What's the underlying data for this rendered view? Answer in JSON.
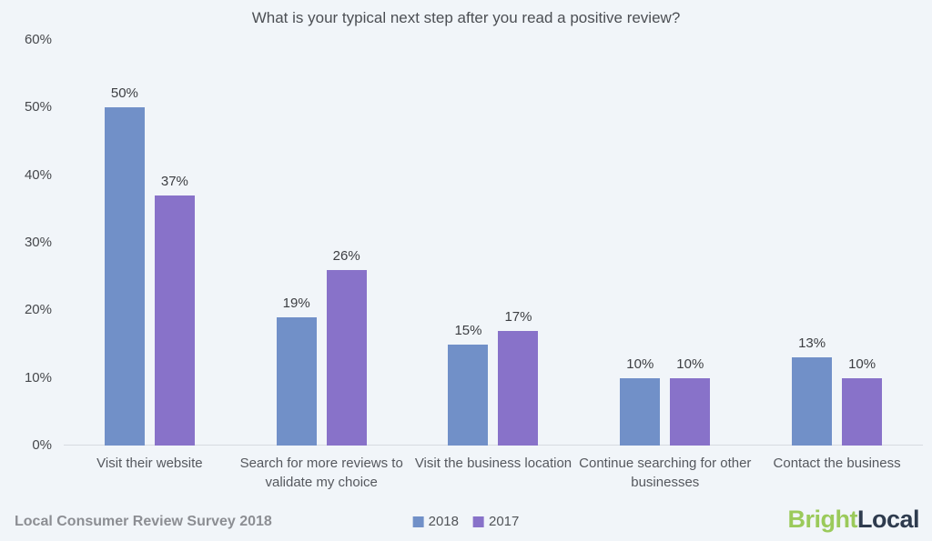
{
  "chart_data": {
    "type": "bar",
    "title": "What is your typical next step after you read a positive review?",
    "categories": [
      "Visit their website",
      "Search for more reviews to validate my choice",
      "Visit the business location",
      "Continue searching for other businesses",
      "Contact the business"
    ],
    "series": [
      {
        "name": "2018",
        "color": "#7190C8",
        "values": [
          50,
          19,
          15,
          10,
          13
        ]
      },
      {
        "name": "2017",
        "color": "#8872C9",
        "values": [
          37,
          26,
          17,
          10,
          10
        ]
      }
    ],
    "value_suffix": "%",
    "ylim": [
      0,
      60
    ],
    "y_ticks": [
      "0%",
      "10%",
      "20%",
      "30%",
      "40%",
      "50%",
      "60%"
    ],
    "grid": "off",
    "legend_position": "bottom-center",
    "background": "#f1f5f9"
  },
  "footer": {
    "source": "Local Consumer Review Survey 2018",
    "logo": {
      "bright": "Bright",
      "local": "Local",
      "bright_color": "#9BCA5B",
      "local_color": "#2E3B4E"
    }
  }
}
